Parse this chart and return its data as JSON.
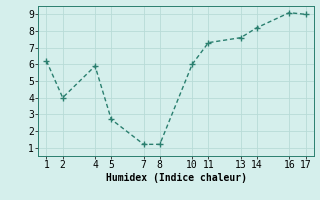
{
  "x": [
    1,
    2,
    4,
    5,
    7,
    8,
    10,
    11,
    13,
    14,
    16,
    17
  ],
  "y": [
    6.2,
    4.0,
    5.9,
    2.7,
    1.2,
    1.2,
    6.0,
    7.3,
    7.6,
    8.2,
    9.1,
    9.0
  ],
  "line_color": "#2a7f6f",
  "marker_color": "#2a7f6f",
  "bg_color": "#d5efec",
  "grid_color": "#b8dbd7",
  "xlabel": "Humidex (Indice chaleur)",
  "xlim": [
    0.5,
    17.5
  ],
  "ylim": [
    0.5,
    9.5
  ],
  "xticks": [
    1,
    2,
    4,
    5,
    7,
    8,
    10,
    11,
    13,
    14,
    16,
    17
  ],
  "yticks": [
    1,
    2,
    3,
    4,
    5,
    6,
    7,
    8,
    9
  ],
  "xlabel_fontsize": 7,
  "tick_fontsize": 7,
  "line_width": 1.0,
  "marker_size": 2.5
}
